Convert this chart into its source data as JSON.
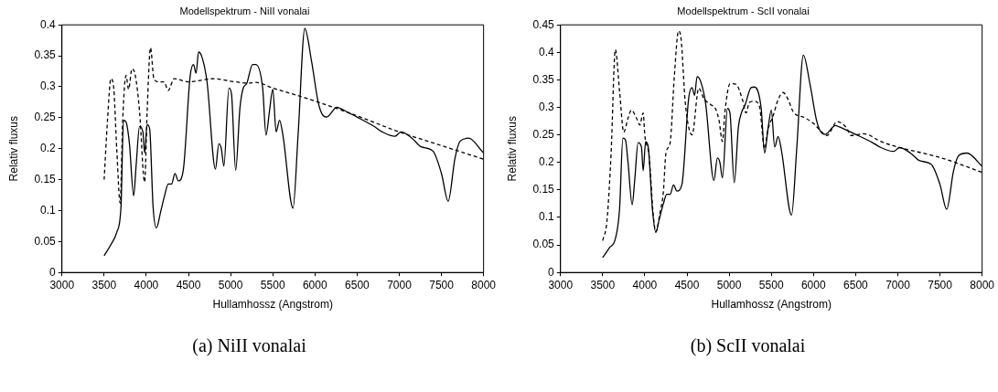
{
  "chart_data": [
    {
      "type": "line",
      "title": "Modellspektrum - NiII vonalai",
      "xlabel": "Hullamhossz (Angstrom)",
      "ylabel": "Relativ fluxus",
      "xlim": [
        3000,
        8000
      ],
      "xticks": [
        3000,
        3500,
        4000,
        4500,
        5000,
        5500,
        6000,
        6500,
        7000,
        7500,
        8000
      ],
      "ylim": [
        0,
        0.4
      ],
      "yticks": [
        0,
        0.05,
        0.1,
        0.15,
        0.2,
        0.25,
        0.3,
        0.35,
        0.4
      ],
      "grid": false,
      "legend": false,
      "marker": "none",
      "annotations": [
        "(a) NiII vonalai"
      ],
      "series": [
        {
          "color": "#000000",
          "line_style": "solid",
          "x": [
            3500,
            3580,
            3650,
            3700,
            3730,
            3760,
            3800,
            3850,
            3880,
            3920,
            3960,
            3980,
            4010,
            4040,
            4080,
            4120,
            4170,
            4220,
            4260,
            4300,
            4340,
            4380,
            4440,
            4520,
            4560,
            4590,
            4620,
            4660,
            4720,
            4820,
            4860,
            4890,
            4920,
            4980,
            5010,
            5060,
            5110,
            5150,
            5190,
            5260,
            5300,
            5380,
            5420,
            5460,
            5500,
            5540,
            5580,
            5620,
            5740,
            5800,
            5880,
            5960,
            6040,
            6100,
            6140,
            6260,
            6300,
            6400,
            6500,
            6700,
            6800,
            6950,
            7020,
            7150,
            7260,
            7400,
            7500,
            7580,
            7660,
            7720,
            7820,
            8000
          ],
          "values": [
            0.027,
            0.045,
            0.065,
            0.107,
            0.246,
            0.243,
            0.208,
            0.124,
            0.174,
            0.236,
            0.227,
            0.193,
            0.239,
            0.232,
            0.107,
            0.072,
            0.098,
            0.126,
            0.143,
            0.143,
            0.16,
            0.148,
            0.167,
            0.317,
            0.336,
            0.322,
            0.356,
            0.348,
            0.308,
            0.167,
            0.208,
            0.2,
            0.172,
            0.298,
            0.289,
            0.165,
            0.265,
            0.298,
            0.305,
            0.336,
            0.336,
            0.298,
            0.222,
            0.26,
            0.296,
            0.227,
            0.246,
            0.222,
            0.104,
            0.222,
            0.394,
            0.341,
            0.274,
            0.253,
            0.251,
            0.267,
            0.265,
            0.258,
            0.251,
            0.236,
            0.227,
            0.22,
            0.227,
            0.217,
            0.203,
            0.196,
            0.16,
            0.115,
            0.184,
            0.212,
            0.217,
            0.193
          ]
        },
        {
          "color": "#000000",
          "line_style": "dashed",
          "x": [
            3500,
            3540,
            3580,
            3610,
            3650,
            3690,
            3720,
            3760,
            3790,
            3830,
            3870,
            3920,
            3980,
            4010,
            4050,
            4090,
            4150,
            4210,
            4260,
            4330,
            4500,
            4800,
            5000,
            5200,
            5300,
            5500,
            6000,
            6500,
            7000,
            7500,
            8000
          ],
          "values": [
            0.15,
            0.246,
            0.313,
            0.303,
            0.198,
            0.112,
            0.246,
            0.318,
            0.296,
            0.329,
            0.318,
            0.26,
            0.146,
            0.26,
            0.363,
            0.313,
            0.308,
            0.308,
            0.294,
            0.313,
            0.308,
            0.313,
            0.309,
            0.306,
            0.307,
            0.298,
            0.277,
            0.253,
            0.227,
            0.205,
            0.183
          ]
        }
      ]
    },
    {
      "type": "line",
      "title": "Modellspektrum - ScII vonalai",
      "xlabel": "Hullamhossz (Angstrom)",
      "ylabel": "Relativ fluxus",
      "xlim": [
        3000,
        8000
      ],
      "xticks": [
        3000,
        3500,
        4000,
        4500,
        5000,
        5500,
        6000,
        6500,
        7000,
        7500,
        8000
      ],
      "ylim": [
        0,
        0.45
      ],
      "yticks": [
        0,
        0.05,
        0.1,
        0.15,
        0.2,
        0.25,
        0.3,
        0.35,
        0.4,
        0.45
      ],
      "grid": false,
      "legend": false,
      "marker": "none",
      "annotations": [
        "(b) ScII vonalai"
      ],
      "series": [
        {
          "color": "#000000",
          "line_style": "solid",
          "x": [
            3500,
            3580,
            3650,
            3700,
            3740,
            3770,
            3800,
            3850,
            3880,
            3920,
            3960,
            3980,
            4010,
            4040,
            4090,
            4130,
            4170,
            4220,
            4260,
            4300,
            4340,
            4380,
            4440,
            4520,
            4560,
            4590,
            4620,
            4660,
            4720,
            4820,
            4860,
            4890,
            4920,
            4980,
            5010,
            5060,
            5110,
            5150,
            5190,
            5260,
            5300,
            5380,
            5420,
            5460,
            5500,
            5540,
            5580,
            5620,
            5740,
            5800,
            5880,
            5960,
            6040,
            6100,
            6140,
            6260,
            6300,
            6400,
            6500,
            6700,
            6800,
            6950,
            7020,
            7150,
            7260,
            7400,
            7500,
            7580,
            7660,
            7720,
            7820,
            8000
          ],
          "values": [
            0.027,
            0.045,
            0.061,
            0.115,
            0.244,
            0.241,
            0.201,
            0.123,
            0.168,
            0.236,
            0.228,
            0.185,
            0.238,
            0.228,
            0.115,
            0.073,
            0.096,
            0.125,
            0.142,
            0.142,
            0.159,
            0.148,
            0.16,
            0.317,
            0.336,
            0.322,
            0.356,
            0.348,
            0.308,
            0.167,
            0.208,
            0.2,
            0.172,
            0.298,
            0.289,
            0.163,
            0.265,
            0.292,
            0.305,
            0.336,
            0.337,
            0.298,
            0.217,
            0.26,
            0.295,
            0.228,
            0.247,
            0.222,
            0.104,
            0.222,
            0.395,
            0.341,
            0.274,
            0.253,
            0.251,
            0.267,
            0.265,
            0.258,
            0.251,
            0.236,
            0.227,
            0.22,
            0.227,
            0.217,
            0.203,
            0.196,
            0.16,
            0.115,
            0.184,
            0.212,
            0.217,
            0.193
          ]
        },
        {
          "color": "#000000",
          "line_style": "dashed",
          "x": [
            3500,
            3550,
            3600,
            3650,
            3700,
            3750,
            3800,
            3840,
            3900,
            3940,
            3980,
            4000,
            4050,
            4100,
            4130,
            4180,
            4220,
            4250,
            4300,
            4350,
            4400,
            4430,
            4480,
            4560,
            4640,
            4700,
            4780,
            4840,
            4880,
            4920,
            4950,
            5010,
            5080,
            5160,
            5200,
            5240,
            5300,
            5360,
            5420,
            5460,
            5520,
            5580,
            5640,
            5700,
            5760,
            5900,
            6000,
            6080,
            6160,
            6280,
            6400,
            6440,
            6600,
            6800,
            7000,
            7500,
            8000
          ],
          "values": [
            0.058,
            0.093,
            0.217,
            0.405,
            0.33,
            0.255,
            0.28,
            0.295,
            0.281,
            0.268,
            0.29,
            0.249,
            0.212,
            0.104,
            0.074,
            0.109,
            0.147,
            0.217,
            0.236,
            0.357,
            0.439,
            0.424,
            0.308,
            0.25,
            0.335,
            0.316,
            0.305,
            0.297,
            0.276,
            0.238,
            0.292,
            0.343,
            0.342,
            0.313,
            0.29,
            0.309,
            0.311,
            0.301,
            0.225,
            0.26,
            0.284,
            0.314,
            0.327,
            0.314,
            0.292,
            0.281,
            0.271,
            0.258,
            0.249,
            0.274,
            0.261,
            0.249,
            0.252,
            0.238,
            0.228,
            0.209,
            0.182
          ]
        }
      ]
    }
  ]
}
